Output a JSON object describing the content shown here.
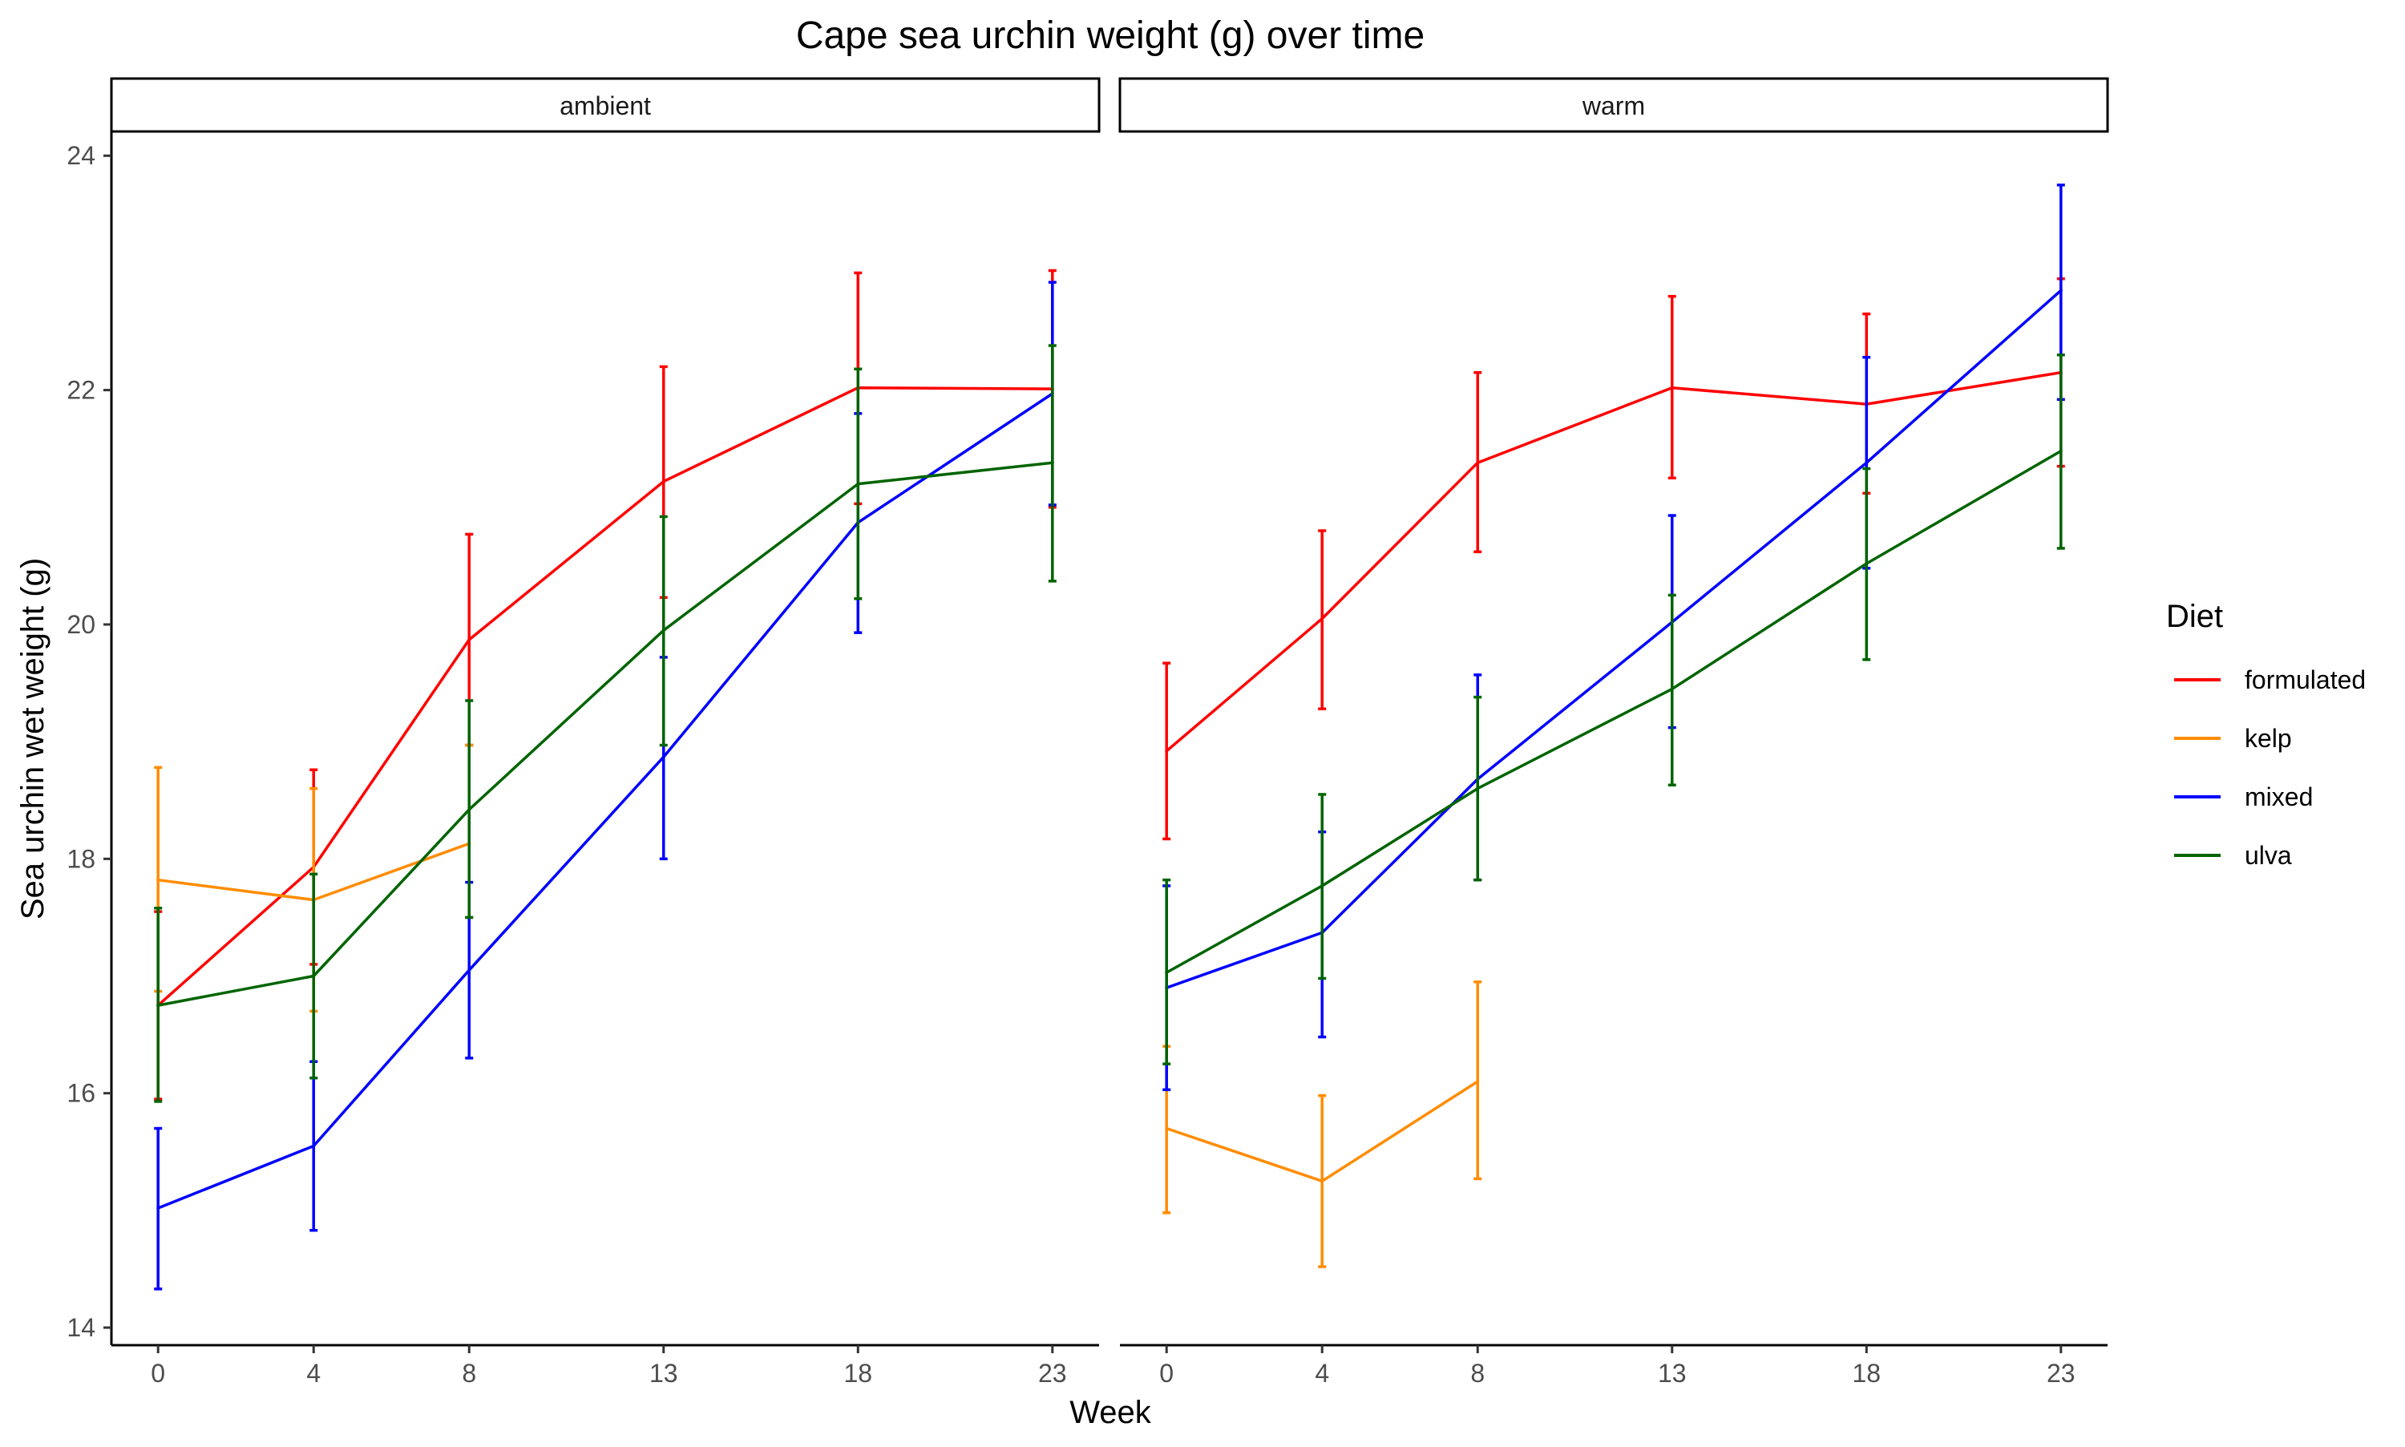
{
  "chart_data": {
    "type": "line",
    "title": "Cape sea urchin weight (g) over time",
    "xlabel": "Week",
    "ylabel": "Sea urchin wet weight (g)",
    "x_ticks": [
      0,
      4,
      8,
      13,
      18,
      23
    ],
    "y_ticks": [
      14,
      16,
      18,
      20,
      22,
      24
    ],
    "ylim": [
      13.85,
      24.2
    ],
    "xlim": [
      -1.2,
      24.2
    ],
    "grid": false,
    "legend": {
      "title": "Diet",
      "position": "right",
      "entries": [
        "formulated",
        "kelp",
        "mixed",
        "ulva"
      ]
    },
    "colors": {
      "formulated": "#ff0000",
      "kelp": "#ff8c00",
      "mixed": "#0000ff",
      "ulva": "#006400"
    },
    "panels": [
      {
        "label": "ambient",
        "series": [
          {
            "name": "formulated",
            "x": [
              0,
              4,
              8,
              13,
              18,
              23
            ],
            "y": [
              16.75,
              17.93,
              19.87,
              21.22,
              22.02,
              22.01
            ],
            "lower": [
              15.95,
              17.1,
              18.97,
              20.23,
              21.03,
              21.0
            ],
            "upper": [
              17.55,
              18.76,
              20.77,
              22.2,
              23.0,
              23.02
            ]
          },
          {
            "name": "kelp",
            "x": [
              0,
              4,
              8
            ],
            "y": [
              17.82,
              17.65,
              18.13
            ],
            "lower": [
              16.87,
              16.7,
              17.5
            ],
            "upper": [
              18.78,
              18.6,
              18.97
            ]
          },
          {
            "name": "mixed",
            "x": [
              0,
              4,
              8,
              13,
              18,
              23
            ],
            "y": [
              15.02,
              15.55,
              17.05,
              18.87,
              20.87,
              21.97
            ],
            "lower": [
              14.33,
              14.83,
              16.3,
              18.0,
              19.93,
              21.02
            ],
            "upper": [
              15.7,
              16.27,
              17.8,
              19.72,
              21.8,
              22.92
            ]
          },
          {
            "name": "ulva",
            "x": [
              0,
              4,
              8,
              13,
              18,
              23
            ],
            "y": [
              16.75,
              17.0,
              18.42,
              19.95,
              21.2,
              21.38
            ],
            "lower": [
              15.93,
              16.13,
              17.5,
              18.97,
              20.22,
              20.37
            ],
            "upper": [
              17.58,
              17.87,
              19.35,
              20.92,
              22.18,
              22.38
            ]
          }
        ]
      },
      {
        "label": "warm",
        "series": [
          {
            "name": "formulated",
            "x": [
              0,
              4,
              8,
              13,
              18,
              23
            ],
            "y": [
              18.92,
              20.05,
              21.38,
              22.02,
              21.88,
              22.15
            ],
            "lower": [
              18.17,
              19.28,
              20.62,
              21.25,
              21.12,
              21.35
            ],
            "upper": [
              19.67,
              20.8,
              22.15,
              22.8,
              22.65,
              22.95
            ]
          },
          {
            "name": "kelp",
            "x": [
              0,
              4,
              8
            ],
            "y": [
              15.7,
              15.25,
              16.1
            ],
            "lower": [
              14.98,
              14.52,
              15.27
            ],
            "upper": [
              16.4,
              15.98,
              16.95
            ]
          },
          {
            "name": "mixed",
            "x": [
              0,
              4,
              8,
              13,
              18,
              23
            ],
            "y": [
              16.9,
              17.37,
              18.68,
              20.02,
              21.38,
              22.85
            ],
            "lower": [
              16.03,
              16.48,
              17.82,
              19.12,
              20.48,
              21.92
            ],
            "upper": [
              17.77,
              18.23,
              19.57,
              20.93,
              22.28,
              23.75
            ]
          },
          {
            "name": "ulva",
            "x": [
              0,
              4,
              8,
              13,
              18,
              23
            ],
            "y": [
              17.03,
              17.77,
              18.6,
              19.45,
              20.52,
              21.48
            ],
            "lower": [
              16.25,
              16.98,
              17.82,
              18.63,
              19.7,
              20.65
            ],
            "upper": [
              17.82,
              18.55,
              19.38,
              20.25,
              21.33,
              22.3
            ]
          }
        ]
      }
    ]
  }
}
